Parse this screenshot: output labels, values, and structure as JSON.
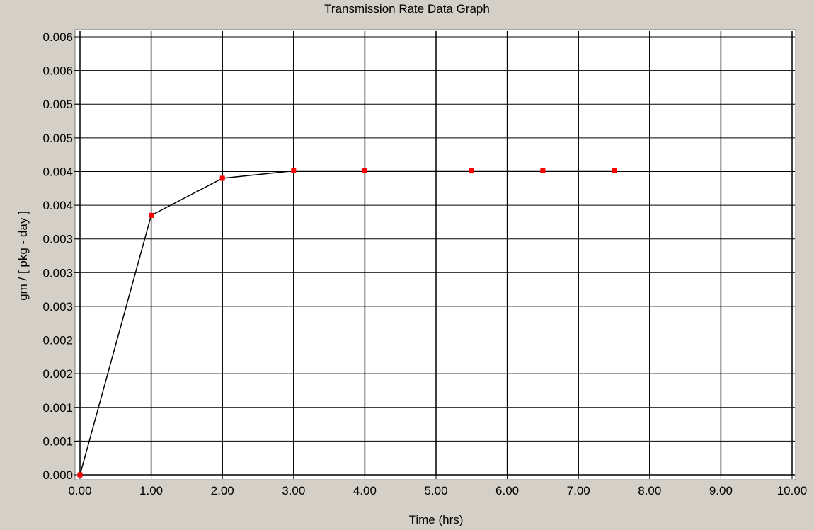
{
  "window": {
    "title": "Transmission Rate Data Graph"
  },
  "chart_data": {
    "type": "line",
    "title": "Transmission Rate Data Graph",
    "xlabel": "Time (hrs)",
    "ylabel": "gm / [ pkg - day ]",
    "xlim": [
      0,
      10
    ],
    "ylim": [
      0,
      0.0065
    ],
    "grid": true,
    "x_ticks": [
      0,
      1,
      2,
      3,
      4,
      5,
      6,
      7,
      8,
      9,
      10
    ],
    "x_tick_labels": [
      "0.00",
      "1.00",
      "2.00",
      "3.00",
      "4.00",
      "5.00",
      "6.00",
      "7.00",
      "8.00",
      "9.00",
      "10.00"
    ],
    "y_ticks": [
      0,
      0.0005,
      0.001,
      0.0015,
      0.002,
      0.0025,
      0.003,
      0.0035,
      0.004,
      0.0045,
      0.005,
      0.0055,
      0.006,
      0.0065
    ],
    "y_tick_labels": [
      "0.000",
      "0.001",
      "0.001",
      "0.002",
      "0.002",
      "0.003",
      "0.003",
      "0.003",
      "0.004",
      "0.004",
      "0.005",
      "0.005",
      "0.006",
      "0.006"
    ],
    "series": [
      {
        "x": [
          0,
          1,
          2,
          3,
          4,
          5.5,
          6.5,
          7.5
        ],
        "y": [
          0,
          0.00385,
          0.0044,
          0.00451,
          0.00451,
          0.00451,
          0.00451,
          0.00451
        ],
        "line_color": "#000000",
        "marker_color": "#ff0000"
      }
    ]
  }
}
